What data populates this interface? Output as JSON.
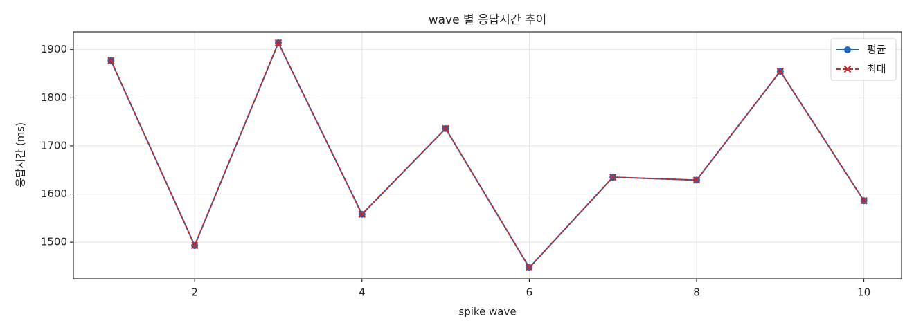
{
  "chart_data": {
    "type": "line",
    "title": "wave 별 응답시간 추이",
    "xlabel": "spike wave",
    "ylabel": "응답시간 (ms)",
    "x": [
      1,
      2,
      3,
      4,
      5,
      6,
      7,
      8,
      9,
      10
    ],
    "series": [
      {
        "name": "평균",
        "color": "#1f66b8",
        "values": [
          1877,
          1493,
          1914,
          1558,
          1736,
          1447,
          1635,
          1629,
          1855,
          1586
        ]
      },
      {
        "name": "최대",
        "color": "#c62828",
        "values": [
          1877,
          1493,
          1914,
          1558,
          1736,
          1447,
          1635,
          1629,
          1855,
          1586
        ]
      }
    ],
    "xlim": [
      0.55,
      10.45
    ],
    "xticks": [
      2,
      4,
      6,
      8,
      10
    ],
    "ylim": [
      1424,
      1937
    ],
    "yticks": [
      1500,
      1600,
      1700,
      1800,
      1900
    ],
    "grid": true,
    "legend": "upper right"
  }
}
